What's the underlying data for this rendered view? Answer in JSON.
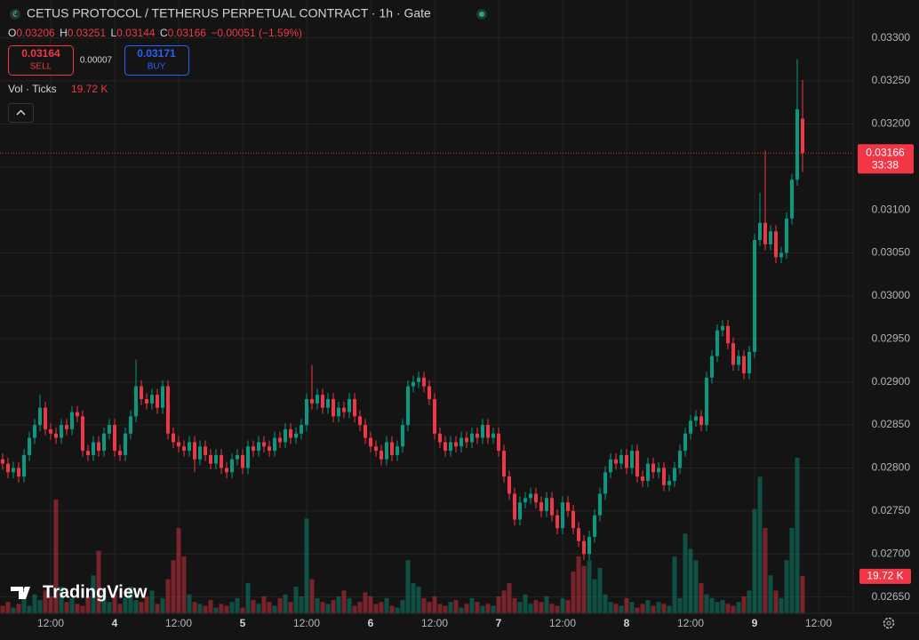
{
  "chart_data": {
    "type": "candlestick",
    "title": "CETUS PROTOCOL / TETHERUS PERPETUAL CONTRACT · 1h · Gate",
    "ohlc_letters": [
      "O",
      "H",
      "L",
      "C"
    ],
    "change_label": "−0.00051 (−1.59%)",
    "trade": {
      "sell": 0.03164,
      "sell_label": "SELL",
      "spread": 7e-05,
      "buy": 0.03171,
      "buy_label": "BUY"
    },
    "countdown": "33:38",
    "watermark": "TradingView",
    "up_color": "#089981",
    "down_color": "#f23645",
    "ylim": [
      0.02631,
      0.03344
    ],
    "yticks": [
      {
        "value": 0.0265,
        "label": "0.02650"
      },
      {
        "value": 0.027,
        "label": "0.02700"
      },
      {
        "value": 0.0275,
        "label": "0.02750"
      },
      {
        "value": 0.028,
        "label": "0.02800"
      },
      {
        "value": 0.0285,
        "label": "0.02850"
      },
      {
        "value": 0.029,
        "label": "0.02900"
      },
      {
        "value": 0.0295,
        "label": "0.02950"
      },
      {
        "value": 0.03,
        "label": "0.03000"
      },
      {
        "value": 0.0305,
        "label": "0.03050"
      },
      {
        "value": 0.031,
        "label": "0.03100"
      },
      {
        "value": 0.0315,
        "label": "0.03150"
      },
      {
        "value": 0.032,
        "label": "0.03200"
      },
      {
        "value": 0.0325,
        "label": "0.03250"
      },
      {
        "value": 0.033,
        "label": "0.03300"
      }
    ],
    "xticks": [
      {
        "value": 9,
        "label": "12:00"
      },
      {
        "value": 21,
        "label": "4"
      },
      {
        "value": 33,
        "label": "12:00"
      },
      {
        "value": 45,
        "label": "5"
      },
      {
        "value": 57,
        "label": "12:00"
      },
      {
        "value": 69,
        "label": "6"
      },
      {
        "value": 81,
        "label": "12:00"
      },
      {
        "value": 93,
        "label": "7"
      },
      {
        "value": 105,
        "label": "12:00"
      },
      {
        "value": 117,
        "label": "8"
      },
      {
        "value": 129,
        "label": "12:00"
      },
      {
        "value": 141,
        "label": "9"
      },
      {
        "value": 153,
        "label": "12:00"
      }
    ],
    "grid": true,
    "open": [
      0.0281,
      0.02805,
      0.02795,
      0.028,
      0.0279,
      0.02815,
      0.02835,
      0.0285,
      0.0287,
      0.02845,
      0.0284,
      0.02835,
      0.0285,
      0.02845,
      0.02865,
      0.0286,
      0.0282,
      0.02815,
      0.0283,
      0.0282,
      0.0284,
      0.0285,
      0.0282,
      0.02815,
      0.0284,
      0.0286,
      0.02895,
      0.0288,
      0.02875,
      0.02885,
      0.0287,
      0.02895,
      0.0284,
      0.0283,
      0.02825,
      0.0282,
      0.0283,
      0.0281,
      0.02825,
      0.02815,
      0.02805,
      0.02815,
      0.028,
      0.02795,
      0.0281,
      0.02815,
      0.028,
      0.02825,
      0.0282,
      0.0283,
      0.02825,
      0.0282,
      0.02835,
      0.0283,
      0.02845,
      0.02835,
      0.0284,
      0.0285,
      0.0288,
      0.02875,
      0.02885,
      0.0287,
      0.0288,
      0.0286,
      0.0287,
      0.02865,
      0.0288,
      0.0286,
      0.0285,
      0.02835,
      0.02825,
      0.0282,
      0.0281,
      0.0283,
      0.02815,
      0.02825,
      0.0285,
      0.02895,
      0.029,
      0.02905,
      0.02895,
      0.0288,
      0.0284,
      0.0283,
      0.0282,
      0.0283,
      0.02825,
      0.02835,
      0.0283,
      0.0284,
      0.02835,
      0.0285,
      0.02835,
      0.0284,
      0.0282,
      0.0279,
      0.0277,
      0.0274,
      0.0276,
      0.02765,
      0.0277,
      0.0276,
      0.0275,
      0.02765,
      0.02745,
      0.0273,
      0.0276,
      0.0275,
      0.0273,
      0.02715,
      0.027,
      0.0272,
      0.02745,
      0.0277,
      0.02795,
      0.0281,
      0.02805,
      0.02815,
      0.028,
      0.0282,
      0.0279,
      0.02785,
      0.02805,
      0.02795,
      0.028,
      0.0278,
      0.02785,
      0.028,
      0.0282,
      0.0284,
      0.02855,
      0.0286,
      0.0285,
      0.02905,
      0.0293,
      0.0296,
      0.02965,
      0.02945,
      0.0292,
      0.0293,
      0.0291,
      0.02935,
      0.03065,
      0.03085,
      0.0306,
      0.03075,
      0.03045,
      0.0305,
      0.0309,
      0.03135,
      0.03206
    ],
    "high": [
      0.02817,
      0.02812,
      0.02807,
      0.02807,
      0.02822,
      0.02842,
      0.02857,
      0.02885,
      0.02877,
      0.02852,
      0.02847,
      0.02857,
      0.02857,
      0.02872,
      0.02872,
      0.02867,
      0.02827,
      0.02837,
      0.02837,
      0.02847,
      0.02857,
      0.02857,
      0.02827,
      0.02847,
      0.02867,
      0.02926,
      0.02902,
      0.02887,
      0.02892,
      0.02892,
      0.02902,
      0.02902,
      0.02847,
      0.02837,
      0.02832,
      0.02837,
      0.02837,
      0.02832,
      0.02832,
      0.02822,
      0.02822,
      0.02822,
      0.02807,
      0.02817,
      0.02822,
      0.02822,
      0.02832,
      0.02832,
      0.02837,
      0.02837,
      0.02832,
      0.02842,
      0.02842,
      0.02852,
      0.02852,
      0.02847,
      0.02857,
      0.02887,
      0.0292,
      0.02892,
      0.02892,
      0.02887,
      0.02887,
      0.02877,
      0.02877,
      0.02887,
      0.02887,
      0.02867,
      0.02857,
      0.02842,
      0.02832,
      0.02827,
      0.02837,
      0.02837,
      0.02832,
      0.02857,
      0.02902,
      0.02907,
      0.02912,
      0.02912,
      0.02902,
      0.02887,
      0.02847,
      0.02837,
      0.02837,
      0.02837,
      0.02842,
      0.02842,
      0.02847,
      0.02847,
      0.02857,
      0.02857,
      0.02847,
      0.02847,
      0.02827,
      0.02797,
      0.02777,
      0.02767,
      0.02772,
      0.02777,
      0.02777,
      0.02767,
      0.02772,
      0.02772,
      0.02752,
      0.02767,
      0.02767,
      0.02757,
      0.02737,
      0.02722,
      0.02727,
      0.02752,
      0.02777,
      0.02802,
      0.02817,
      0.02817,
      0.02822,
      0.02822,
      0.02827,
      0.02827,
      0.02797,
      0.02812,
      0.02812,
      0.02807,
      0.02807,
      0.02792,
      0.02807,
      0.02827,
      0.02847,
      0.02862,
      0.02867,
      0.02867,
      0.02912,
      0.02937,
      0.02967,
      0.02972,
      0.02972,
      0.02952,
      0.02937,
      0.02937,
      0.02942,
      0.03072,
      0.0312,
      0.03169,
      0.03082,
      0.03082,
      0.03057,
      0.03097,
      0.03142,
      0.03275,
      0.03251
    ],
    "low": [
      0.02798,
      0.02788,
      0.02788,
      0.02783,
      0.02783,
      0.02808,
      0.02828,
      0.02843,
      0.02838,
      0.02833,
      0.02828,
      0.02828,
      0.02838,
      0.02838,
      0.02853,
      0.02813,
      0.02808,
      0.02808,
      0.02813,
      0.02813,
      0.02833,
      0.02813,
      0.02808,
      0.02808,
      0.02833,
      0.02853,
      0.02873,
      0.02868,
      0.02868,
      0.02863,
      0.02863,
      0.02833,
      0.02823,
      0.02818,
      0.02813,
      0.02813,
      0.02795,
      0.02803,
      0.02808,
      0.02798,
      0.02798,
      0.02793,
      0.02788,
      0.02788,
      0.02803,
      0.02793,
      0.02793,
      0.02813,
      0.02813,
      0.02818,
      0.02813,
      0.02813,
      0.02823,
      0.02823,
      0.02828,
      0.02828,
      0.02833,
      0.02843,
      0.02868,
      0.02868,
      0.02863,
      0.02863,
      0.02853,
      0.02853,
      0.02858,
      0.02858,
      0.02853,
      0.02843,
      0.02828,
      0.02818,
      0.02813,
      0.02803,
      0.02803,
      0.02808,
      0.02808,
      0.02818,
      0.02843,
      0.02888,
      0.02893,
      0.02888,
      0.02873,
      0.02833,
      0.02823,
      0.02813,
      0.02813,
      0.02818,
      0.02818,
      0.02823,
      0.02823,
      0.02828,
      0.02828,
      0.02828,
      0.02828,
      0.02813,
      0.02783,
      0.02763,
      0.02733,
      0.02733,
      0.02753,
      0.02758,
      0.02753,
      0.02743,
      0.02743,
      0.02738,
      0.02723,
      0.02723,
      0.02743,
      0.02723,
      0.02708,
      0.02693,
      0.02693,
      0.02713,
      0.02738,
      0.02763,
      0.02788,
      0.02798,
      0.02798,
      0.02793,
      0.02793,
      0.02783,
      0.02778,
      0.02778,
      0.02788,
      0.02788,
      0.02773,
      0.02773,
      0.02778,
      0.02793,
      0.02813,
      0.02833,
      0.02848,
      0.02843,
      0.02843,
      0.02898,
      0.02923,
      0.02953,
      0.02938,
      0.02913,
      0.02913,
      0.02903,
      0.02903,
      0.02928,
      0.03058,
      0.03053,
      0.03053,
      0.03038,
      0.03038,
      0.03043,
      0.03083,
      0.03128,
      0.03144
    ],
    "close": [
      0.02805,
      0.02795,
      0.028,
      0.0279,
      0.02815,
      0.02835,
      0.0285,
      0.0287,
      0.02845,
      0.0284,
      0.02835,
      0.0285,
      0.02845,
      0.02865,
      0.0286,
      0.0282,
      0.02815,
      0.0283,
      0.0282,
      0.0284,
      0.0285,
      0.0282,
      0.02815,
      0.0284,
      0.0286,
      0.02895,
      0.0288,
      0.02875,
      0.02885,
      0.0287,
      0.02895,
      0.0284,
      0.0283,
      0.02825,
      0.0282,
      0.0283,
      0.0281,
      0.02825,
      0.02815,
      0.02805,
      0.02815,
      0.028,
      0.02795,
      0.0281,
      0.02815,
      0.028,
      0.02825,
      0.0282,
      0.0283,
      0.02825,
      0.0282,
      0.02835,
      0.0283,
      0.02845,
      0.02835,
      0.0284,
      0.0285,
      0.0288,
      0.02875,
      0.02885,
      0.0287,
      0.0288,
      0.0286,
      0.0287,
      0.02865,
      0.0288,
      0.0286,
      0.0285,
      0.02835,
      0.02825,
      0.0282,
      0.0281,
      0.0283,
      0.02815,
      0.02825,
      0.0285,
      0.02895,
      0.029,
      0.02905,
      0.02895,
      0.0288,
      0.0284,
      0.0283,
      0.0282,
      0.0283,
      0.02825,
      0.02835,
      0.0283,
      0.0284,
      0.02835,
      0.0285,
      0.02835,
      0.0284,
      0.0282,
      0.0279,
      0.0277,
      0.0274,
      0.0276,
      0.02765,
      0.0277,
      0.0276,
      0.0275,
      0.02765,
      0.02745,
      0.0273,
      0.0276,
      0.0275,
      0.0273,
      0.02715,
      0.027,
      0.0272,
      0.02745,
      0.0277,
      0.02795,
      0.0281,
      0.02805,
      0.02815,
      0.028,
      0.0282,
      0.0279,
      0.02785,
      0.02805,
      0.02795,
      0.028,
      0.0278,
      0.02785,
      0.028,
      0.0282,
      0.0284,
      0.02855,
      0.0286,
      0.0285,
      0.02905,
      0.0293,
      0.0296,
      0.02965,
      0.02945,
      0.0292,
      0.0293,
      0.0291,
      0.02935,
      0.03065,
      0.03085,
      0.0306,
      0.03075,
      0.03045,
      0.0305,
      0.0309,
      0.03135,
      0.03217,
      0.03166
    ],
    "volume": {
      "name": "Vol · Ticks",
      "current_label": "19.72 K",
      "values": [
        4000,
        6000,
        3000,
        5000,
        8000,
        4000,
        10000,
        7000,
        12000,
        9000,
        60000,
        14000,
        6000,
        8000,
        5000,
        4000,
        9000,
        20000,
        33000,
        12000,
        6000,
        10000,
        5000,
        8000,
        14000,
        7000,
        6000,
        9000,
        12000,
        5000,
        8000,
        18000,
        28000,
        45000,
        30000,
        10000,
        6000,
        5000,
        4000,
        7000,
        3000,
        5000,
        4000,
        6000,
        8000,
        3000,
        16000,
        7000,
        5000,
        9000,
        6000,
        4000,
        8000,
        10000,
        6000,
        14000,
        9000,
        50000,
        18000,
        8000,
        6000,
        5000,
        7000,
        9000,
        12000,
        8000,
        4000,
        6000,
        11000,
        9000,
        5000,
        6000,
        8000,
        4000,
        3000,
        7000,
        28000,
        16000,
        14000,
        8000,
        6000,
        9000,
        5000,
        4000,
        6000,
        7000,
        3000,
        5000,
        8000,
        6000,
        4000,
        5000,
        4000,
        9000,
        12000,
        16000,
        8000,
        6000,
        10000,
        5000,
        7000,
        6000,
        9000,
        5000,
        4000,
        8000,
        7000,
        22000,
        30000,
        25000,
        28000,
        18000,
        24000,
        10000,
        6000,
        5000,
        4000,
        8000,
        6000,
        3000,
        5000,
        7000,
        4000,
        6000,
        5000,
        4000,
        30000,
        8000,
        42000,
        34000,
        28000,
        16000,
        10000,
        8000,
        6000,
        7000,
        5000,
        4000,
        6000,
        9000,
        12000,
        55000,
        72000,
        45000,
        20000,
        12000,
        8000,
        28000,
        45000,
        82000,
        19720
      ]
    }
  }
}
